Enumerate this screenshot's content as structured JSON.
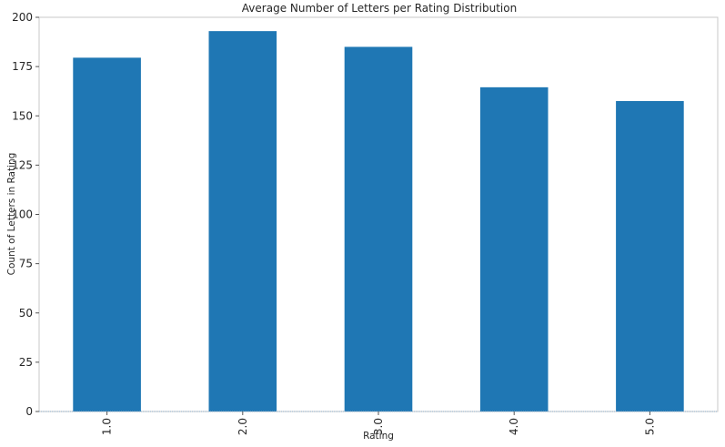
{
  "chart_data": {
    "type": "bar",
    "title": "Average Number of Letters per Rating Distribution",
    "xlabel": "Rating",
    "ylabel": "Count of Letters in Rating",
    "categories": [
      "1.0",
      "2.0",
      "3.0",
      "4.0",
      "5.0"
    ],
    "values": [
      179.5,
      193,
      185,
      164.5,
      157.5
    ],
    "ylim": [
      0,
      200
    ],
    "yticks": [
      "0",
      "25",
      "50",
      "75",
      "100",
      "125",
      "150",
      "175",
      "200"
    ],
    "grid": false,
    "legend": "none",
    "bar_color": "#1f77b4"
  }
}
